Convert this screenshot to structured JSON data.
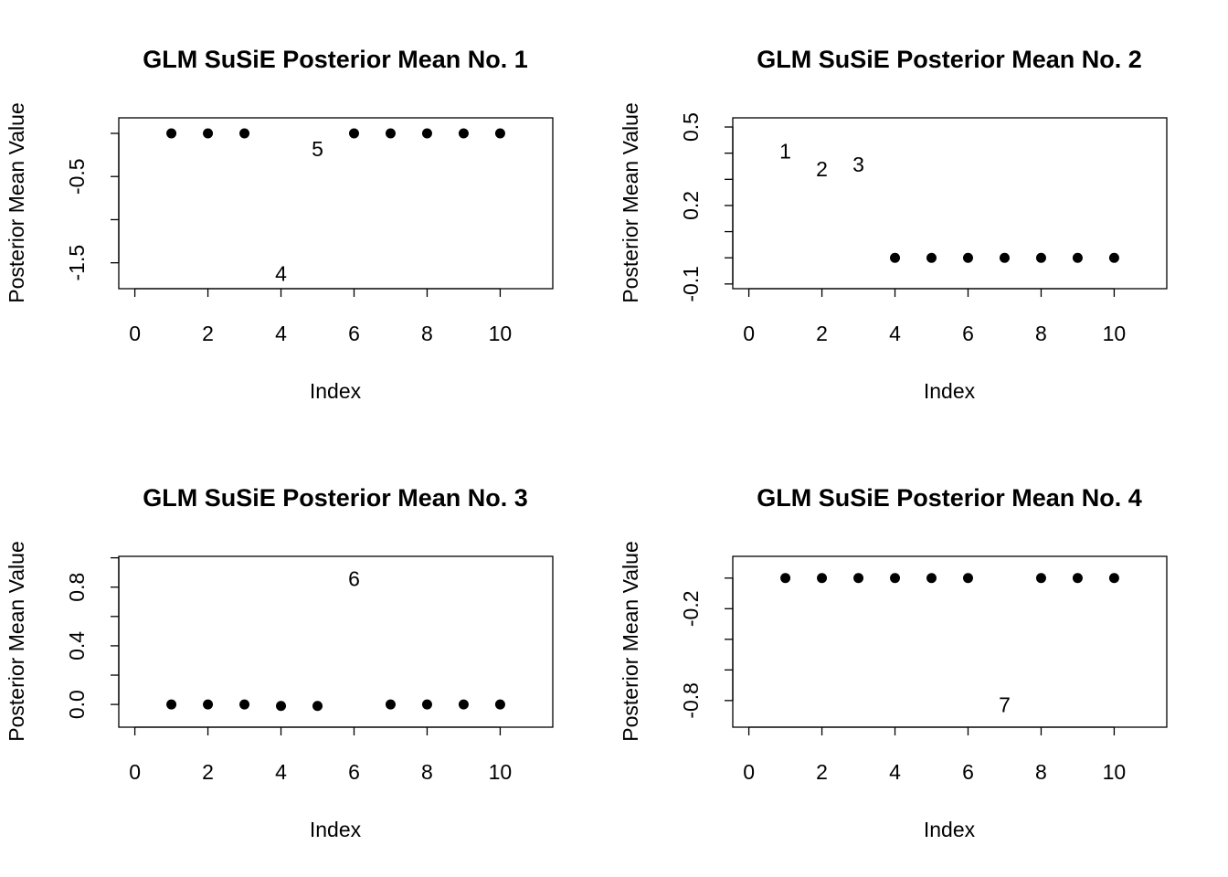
{
  "chart_data": [
    {
      "type": "scatter",
      "title": "GLM SuSiE Posterior Mean No. 1",
      "xlabel": "Index",
      "ylabel": "Posterior Mean Value",
      "x": [
        1,
        2,
        3,
        4,
        5,
        6,
        7,
        8,
        9,
        10
      ],
      "values": [
        0,
        0,
        0,
        -1.647,
        -0.2,
        0,
        0,
        0,
        0,
        0
      ],
      "point_labels": [
        null,
        null,
        null,
        "4",
        "5",
        null,
        null,
        null,
        null,
        null
      ],
      "color": "#000000",
      "xlim": [
        -0.44,
        11.44
      ],
      "xticks": [
        0,
        2,
        4,
        6,
        8,
        10
      ],
      "ylim": [
        -1.8,
        0.18
      ],
      "yticks": [
        -1.5,
        -0.5
      ],
      "yticks_unlabeled": [
        -1,
        0
      ]
    },
    {
      "type": "scatter",
      "title": "GLM SuSiE Posterior Mean No. 2",
      "xlabel": "Index",
      "ylabel": "Posterior Mean Value",
      "x": [
        1,
        2,
        3,
        4,
        5,
        6,
        7,
        8,
        9,
        10
      ],
      "values": [
        0.4,
        0.333,
        0.35,
        0,
        0,
        0,
        0,
        0,
        0,
        0
      ],
      "point_labels": [
        "1",
        "2",
        "3",
        null,
        null,
        null,
        null,
        null,
        null,
        null
      ],
      "color": "#000000",
      "xlim": [
        -0.44,
        11.44
      ],
      "xticks": [
        0,
        2,
        4,
        6,
        8,
        10
      ],
      "ylim": [
        -0.118,
        0.535
      ],
      "yticks": [
        -0.1,
        0.2,
        0.5
      ],
      "yticks_unlabeled": [
        0,
        0.1,
        0.3,
        0.4
      ]
    },
    {
      "type": "scatter",
      "title": "GLM SuSiE Posterior Mean No. 3",
      "xlabel": "Index",
      "ylabel": "Posterior Mean Value",
      "x": [
        1,
        2,
        3,
        4,
        5,
        6,
        7,
        8,
        9,
        10
      ],
      "values": [
        0,
        0,
        0,
        -0.01,
        -0.01,
        0.845,
        0,
        0,
        0,
        0
      ],
      "point_labels": [
        null,
        null,
        null,
        null,
        null,
        "6",
        null,
        null,
        null,
        null
      ],
      "color": "#000000",
      "xlim": [
        -0.44,
        11.44
      ],
      "xticks": [
        0,
        2,
        4,
        6,
        8,
        10
      ],
      "ylim": [
        -0.155,
        1.01
      ],
      "yticks": [
        {
          "value": 0,
          "label": "0.0"
        },
        0.4,
        0.8
      ],
      "yticks_unlabeled": [
        0.2,
        0.6,
        1
      ]
    },
    {
      "type": "scatter",
      "title": "GLM SuSiE Posterior Mean No. 4",
      "xlabel": "Index",
      "ylabel": "Posterior Mean Value",
      "x": [
        1,
        2,
        3,
        4,
        5,
        6,
        7,
        8,
        9,
        10
      ],
      "values": [
        0,
        0,
        0,
        0,
        0,
        0,
        -0.84,
        0,
        0,
        0
      ],
      "point_labels": [
        null,
        null,
        null,
        null,
        null,
        null,
        "7",
        null,
        null,
        null
      ],
      "color": "#000000",
      "xlim": [
        -0.44,
        11.44
      ],
      "xticks": [
        0,
        2,
        4,
        6,
        8,
        10
      ],
      "ylim": [
        -0.974,
        0.142
      ],
      "yticks": [
        -0.8,
        -0.2
      ],
      "yticks_unlabeled": [
        0,
        -0.4,
        -0.6
      ]
    }
  ]
}
